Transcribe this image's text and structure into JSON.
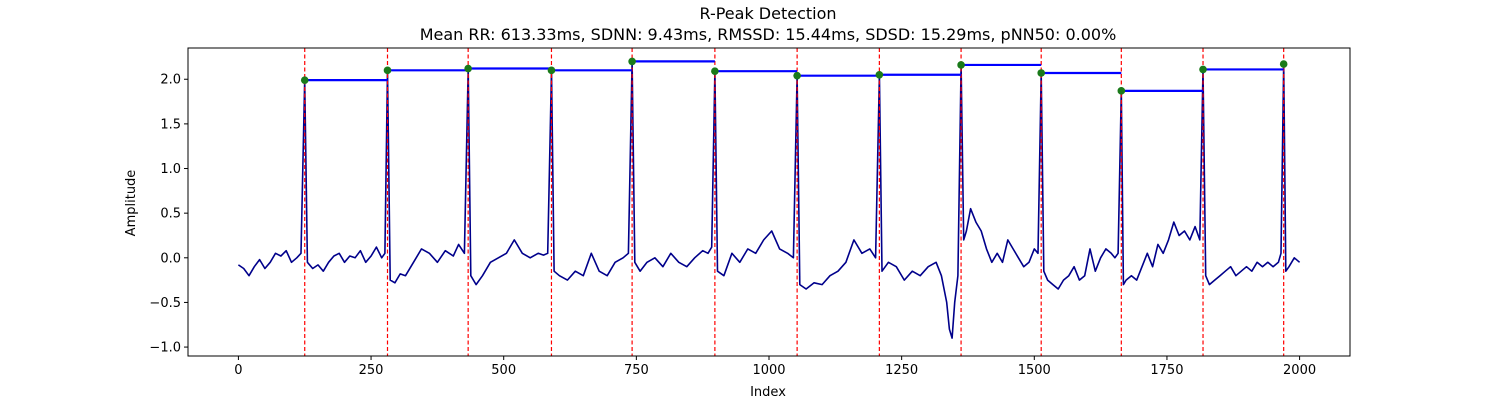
{
  "chart_data": {
    "type": "line",
    "title": "R-Peak Detection",
    "subtitle": "Mean RR: 613.33ms, SDNN: 9.43ms, RMSSD: 15.44ms, SDSD: 15.29ms, pNN50: 0.00%",
    "xlabel": "Index",
    "ylabel": "Amplitude",
    "xlim": [
      -95,
      2095
    ],
    "ylim": [
      -1.1,
      2.35
    ],
    "xticks": [
      0,
      250,
      500,
      750,
      1000,
      1250,
      1500,
      1750,
      2000
    ],
    "yticks": [
      -1.0,
      -0.5,
      0.0,
      0.5,
      1.0,
      1.5,
      2.0
    ],
    "xtick_labels": [
      "0",
      "250",
      "500",
      "750",
      "1000",
      "1250",
      "1500",
      "1750",
      "2000"
    ],
    "ytick_labels": [
      "−1.0",
      "−0.5",
      "0.0",
      "0.5",
      "1.0",
      "1.5",
      "2.0"
    ],
    "grid": false,
    "legend": "none",
    "colors": {
      "signal": "#00008b",
      "peak_line": "#ff0000",
      "peak_marker": "#1a7a1a",
      "rr_segment": "#0000ff"
    },
    "r_peaks": {
      "x": [
        125,
        281,
        433,
        590,
        742,
        898,
        1053,
        1208,
        1362,
        1513,
        1664,
        1818,
        1970
      ],
      "y": [
        1.99,
        2.1,
        2.12,
        2.1,
        2.2,
        2.09,
        2.04,
        2.05,
        2.16,
        2.07,
        1.87,
        2.11,
        2.17
      ]
    },
    "series": [
      {
        "role": "ecg-signal",
        "x": [
          0,
          10,
          20,
          30,
          40,
          50,
          60,
          70,
          80,
          90,
          100,
          110,
          118,
          125,
          130,
          140,
          150,
          160,
          170,
          180,
          190,
          200,
          210,
          220,
          230,
          240,
          250,
          260,
          270,
          276,
          281,
          286,
          295,
          305,
          315,
          330,
          345,
          360,
          375,
          390,
          405,
          415,
          426,
          433,
          438,
          448,
          460,
          475,
          490,
          505,
          520,
          535,
          550,
          565,
          575,
          583,
          590,
          595,
          605,
          620,
          635,
          650,
          665,
          680,
          695,
          710,
          725,
          735,
          742,
          747,
          757,
          770,
          785,
          800,
          815,
          830,
          845,
          860,
          875,
          885,
          892,
          898,
          903,
          915,
          930,
          945,
          960,
          975,
          990,
          1005,
          1020,
          1035,
          1046,
          1053,
          1058,
          1070,
          1085,
          1100,
          1115,
          1130,
          1145,
          1160,
          1175,
          1190,
          1201,
          1208,
          1213,
          1225,
          1240,
          1255,
          1270,
          1285,
          1300,
          1315,
          1325,
          1335,
          1340,
          1345,
          1350,
          1356,
          1362,
          1367,
          1372,
          1380,
          1390,
          1400,
          1410,
          1420,
          1430,
          1440,
          1450,
          1460,
          1470,
          1480,
          1490,
          1500,
          1507,
          1513,
          1518,
          1525,
          1535,
          1545,
          1555,
          1565,
          1575,
          1585,
          1595,
          1605,
          1615,
          1625,
          1635,
          1645,
          1652,
          1658,
          1664,
          1668,
          1673,
          1683,
          1693,
          1703,
          1713,
          1723,
          1733,
          1743,
          1753,
          1763,
          1773,
          1783,
          1793,
          1803,
          1812,
          1818,
          1823,
          1830,
          1840,
          1850,
          1860,
          1870,
          1880,
          1890,
          1900,
          1910,
          1920,
          1930,
          1940,
          1950,
          1960,
          1965,
          1970,
          1974,
          1980,
          1990,
          2000
        ],
        "y": [
          -0.08,
          -0.12,
          -0.2,
          -0.1,
          -0.02,
          -0.12,
          -0.05,
          0.05,
          0.02,
          0.08,
          -0.05,
          0.0,
          0.05,
          1.99,
          -0.05,
          -0.12,
          -0.08,
          -0.15,
          -0.05,
          0.02,
          0.05,
          -0.05,
          0.02,
          0.0,
          0.08,
          -0.05,
          0.02,
          0.12,
          0.0,
          0.05,
          2.1,
          -0.25,
          -0.28,
          -0.18,
          -0.2,
          -0.05,
          0.1,
          0.05,
          -0.05,
          0.08,
          0.02,
          0.15,
          0.05,
          2.12,
          -0.2,
          -0.3,
          -0.2,
          -0.05,
          0.0,
          0.05,
          0.2,
          0.05,
          0.0,
          0.05,
          0.03,
          0.05,
          2.1,
          -0.15,
          -0.2,
          -0.25,
          -0.15,
          -0.2,
          0.05,
          -0.15,
          -0.2,
          -0.05,
          0.0,
          0.05,
          2.2,
          -0.05,
          -0.15,
          -0.05,
          0.0,
          -0.1,
          0.05,
          -0.05,
          -0.1,
          0.0,
          0.08,
          0.05,
          0.12,
          2.09,
          -0.15,
          -0.2,
          0.05,
          -0.05,
          0.1,
          0.05,
          0.2,
          0.3,
          0.1,
          0.05,
          0.0,
          2.04,
          -0.3,
          -0.35,
          -0.28,
          -0.3,
          -0.2,
          -0.15,
          -0.05,
          0.2,
          0.05,
          0.1,
          0.0,
          2.05,
          -0.15,
          -0.05,
          -0.1,
          -0.25,
          -0.15,
          -0.2,
          -0.1,
          -0.05,
          -0.2,
          -0.5,
          -0.8,
          -0.9,
          -0.5,
          -0.2,
          2.16,
          0.2,
          0.3,
          0.55,
          0.4,
          0.3,
          0.1,
          -0.05,
          0.05,
          -0.05,
          0.2,
          0.1,
          0.0,
          -0.1,
          -0.05,
          0.1,
          0.05,
          2.07,
          -0.15,
          -0.25,
          -0.3,
          -0.35,
          -0.25,
          -0.2,
          -0.1,
          -0.25,
          -0.2,
          0.1,
          -0.15,
          0.0,
          0.1,
          0.05,
          0.0,
          0.05,
          1.87,
          -0.3,
          -0.25,
          -0.2,
          -0.25,
          -0.1,
          0.05,
          -0.1,
          0.15,
          0.05,
          0.2,
          0.4,
          0.25,
          0.3,
          0.2,
          0.35,
          0.2,
          2.11,
          -0.2,
          -0.3,
          -0.25,
          -0.2,
          -0.15,
          -0.1,
          -0.2,
          -0.15,
          -0.1,
          -0.15,
          -0.05,
          -0.1,
          -0.05,
          -0.1,
          -0.05,
          0.05,
          2.17,
          -0.15,
          -0.1,
          0.0,
          -0.05
        ]
      }
    ]
  }
}
